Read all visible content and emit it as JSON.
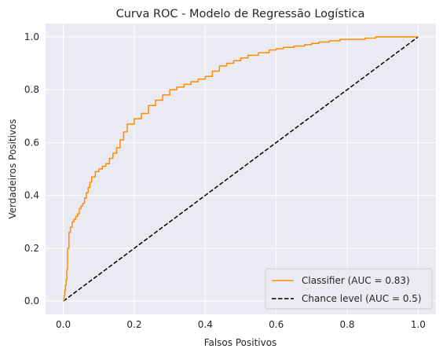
{
  "chart_data": {
    "type": "line",
    "title": "Curva ROC - Modelo de Regressão Logística",
    "xlabel": "Falsos Positivos",
    "ylabel": "Verdadeiros Positivos",
    "xlim": [
      -0.05,
      1.05
    ],
    "ylim": [
      -0.05,
      1.05
    ],
    "xticks": [
      0.0,
      0.2,
      0.4,
      0.6,
      0.8,
      1.0
    ],
    "yticks": [
      0.0,
      0.2,
      0.4,
      0.6,
      0.8,
      1.0
    ],
    "xtick_labels": [
      "0.0",
      "0.2",
      "0.4",
      "0.6",
      "0.8",
      "1.0"
    ],
    "ytick_labels": [
      "0.0",
      "0.2",
      "0.4",
      "0.6",
      "0.8",
      "1.0"
    ],
    "grid": true,
    "legend_position": "lower-right",
    "series": [
      {
        "name": "Classifier (AUC = 0.83)",
        "color": "#ff8c00",
        "style": "solid",
        "x": [
          0.0,
          0.002,
          0.004,
          0.006,
          0.008,
          0.01,
          0.012,
          0.016,
          0.02,
          0.025,
          0.03,
          0.035,
          0.04,
          0.045,
          0.05,
          0.055,
          0.06,
          0.065,
          0.07,
          0.075,
          0.08,
          0.09,
          0.1,
          0.11,
          0.12,
          0.13,
          0.14,
          0.15,
          0.16,
          0.17,
          0.18,
          0.2,
          0.22,
          0.24,
          0.26,
          0.28,
          0.3,
          0.32,
          0.34,
          0.36,
          0.38,
          0.4,
          0.42,
          0.44,
          0.46,
          0.48,
          0.5,
          0.52,
          0.55,
          0.58,
          0.6,
          0.62,
          0.65,
          0.68,
          0.7,
          0.72,
          0.75,
          0.78,
          0.8,
          0.85,
          0.88,
          0.9,
          0.95,
          1.0
        ],
        "y": [
          0.0,
          0.02,
          0.04,
          0.06,
          0.08,
          0.12,
          0.2,
          0.26,
          0.28,
          0.3,
          0.31,
          0.32,
          0.33,
          0.35,
          0.36,
          0.37,
          0.39,
          0.41,
          0.43,
          0.45,
          0.47,
          0.49,
          0.5,
          0.51,
          0.52,
          0.54,
          0.56,
          0.58,
          0.61,
          0.64,
          0.67,
          0.69,
          0.71,
          0.74,
          0.76,
          0.78,
          0.8,
          0.81,
          0.82,
          0.83,
          0.84,
          0.85,
          0.87,
          0.89,
          0.9,
          0.91,
          0.92,
          0.93,
          0.94,
          0.95,
          0.955,
          0.96,
          0.965,
          0.97,
          0.975,
          0.98,
          0.985,
          0.99,
          0.99,
          0.995,
          1.0,
          1.0,
          1.0,
          1.0
        ]
      },
      {
        "name": "Chance level (AUC = 0.5)",
        "color": "#000000",
        "style": "dashed",
        "x": [
          0.0,
          1.0
        ],
        "y": [
          0.0,
          1.0
        ]
      }
    ]
  }
}
